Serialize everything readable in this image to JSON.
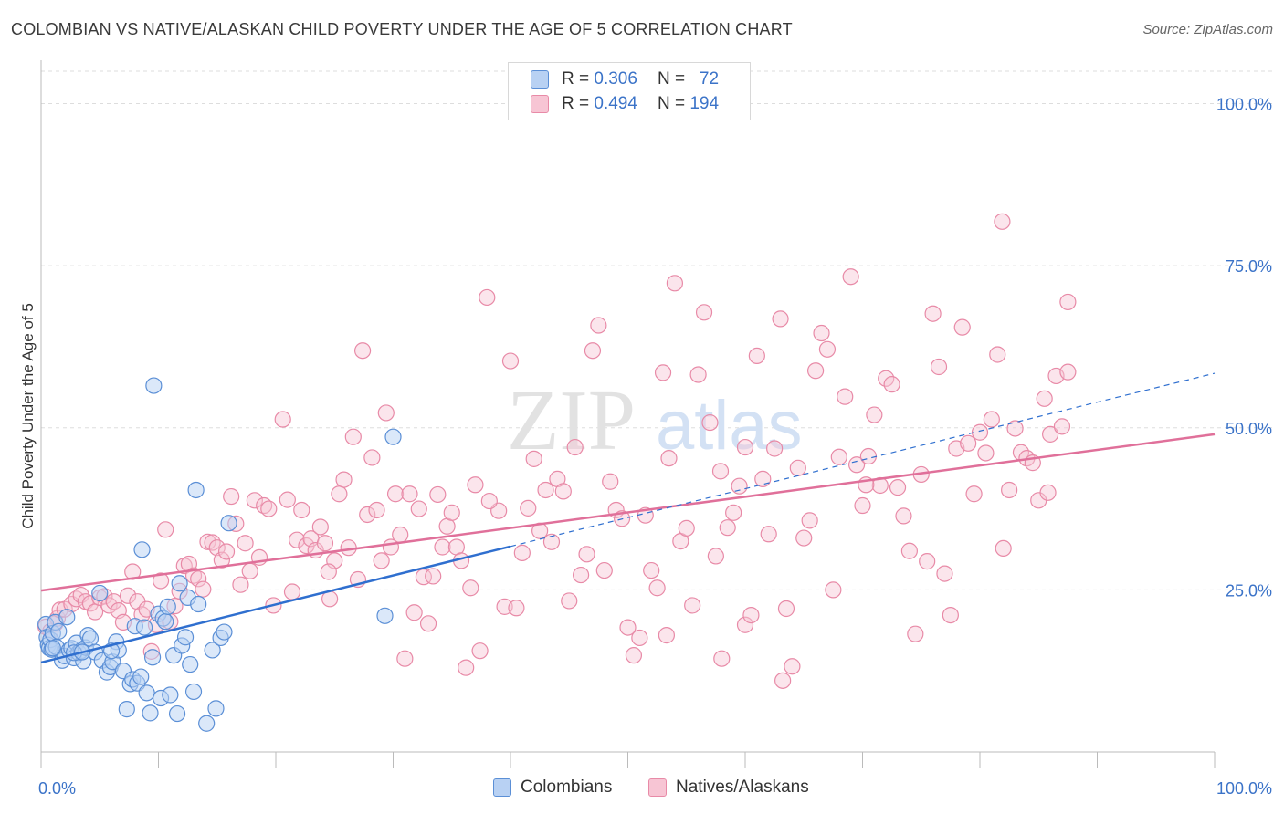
{
  "title": "COLOMBIAN VS NATIVE/ALASKAN CHILD POVERTY UNDER THE AGE OF 5 CORRELATION CHART",
  "source": "Source: ZipAtlas.com",
  "watermark": {
    "zip": "ZIP",
    "atlas": "atlas"
  },
  "legend": {
    "rows": [
      {
        "r_label": "R =",
        "r_value": "0.306",
        "n_label": "N =",
        "n_value": "72"
      },
      {
        "r_label": "R =",
        "r_value": "0.494",
        "n_label": "N =",
        "n_value": "194"
      }
    ],
    "bottom": [
      "Colombians",
      "Natives/Alaskans"
    ]
  },
  "colors": {
    "colombians_fill": "#b8d1f3",
    "colombians_stroke": "#5b8fd6",
    "colombians_line": "#2f6fcf",
    "natives_fill": "#f7c5d4",
    "natives_stroke": "#e88aa7",
    "natives_line": "#e0709a",
    "tick_text": "#3b73c8",
    "grid": "#dddddd"
  },
  "chart_data": {
    "type": "scatter",
    "title": "COLOMBIAN VS NATIVE/ALASKAN CHILD POVERTY UNDER THE AGE OF 5 CORRELATION CHART",
    "xlabel": "",
    "ylabel": "Child Poverty Under the Age of 5",
    "xlim": [
      0,
      100
    ],
    "ylim": [
      0,
      105
    ],
    "x_tick_labels": [
      "0.0%",
      "100.0%"
    ],
    "y_tick_labels": [
      "25.0%",
      "50.0%",
      "75.0%",
      "100.0%"
    ],
    "y_ticks": [
      25,
      50,
      75,
      100
    ],
    "grid": true,
    "series": [
      {
        "name": "Colombians",
        "R": 0.306,
        "N": 72,
        "trend": {
          "x0": 0,
          "y0": 13.8,
          "x1": 40,
          "y1": 31.7,
          "dashed_to_x": 100,
          "dashed_to_y": 58.4
        },
        "points": [
          [
            0.4,
            19.7
          ],
          [
            0.5,
            17.7
          ],
          [
            0.6,
            16.5
          ],
          [
            0.7,
            16.0
          ],
          [
            0.8,
            17.3
          ],
          [
            0.9,
            15.8
          ],
          [
            1.0,
            18.3
          ],
          [
            1.2,
            20.0
          ],
          [
            1.3,
            16.2
          ],
          [
            1.5,
            18.6
          ],
          [
            1.8,
            14.1
          ],
          [
            2.0,
            14.8
          ],
          [
            2.2,
            20.8
          ],
          [
            2.4,
            15.7
          ],
          [
            2.6,
            16.0
          ],
          [
            2.8,
            14.5
          ],
          [
            3.0,
            16.8
          ],
          [
            3.2,
            15.3
          ],
          [
            3.4,
            15.6
          ],
          [
            3.6,
            14.0
          ],
          [
            3.8,
            16.1
          ],
          [
            4.0,
            18.0
          ],
          [
            4.2,
            17.5
          ],
          [
            4.6,
            15.4
          ],
          [
            5.0,
            24.5
          ],
          [
            5.2,
            14.1
          ],
          [
            5.6,
            12.3
          ],
          [
            5.9,
            13.1
          ],
          [
            6.1,
            13.9
          ],
          [
            6.4,
            17.0
          ],
          [
            6.6,
            15.7
          ],
          [
            7.0,
            12.5
          ],
          [
            7.3,
            6.6
          ],
          [
            7.6,
            10.5
          ],
          [
            7.8,
            11.2
          ],
          [
            8.0,
            19.4
          ],
          [
            8.2,
            10.6
          ],
          [
            8.5,
            11.6
          ],
          [
            8.6,
            31.2
          ],
          [
            8.8,
            19.2
          ],
          [
            9.0,
            9.1
          ],
          [
            9.3,
            6.0
          ],
          [
            9.5,
            14.6
          ],
          [
            9.6,
            56.5
          ],
          [
            10.0,
            21.3
          ],
          [
            10.2,
            8.3
          ],
          [
            10.4,
            20.6
          ],
          [
            10.6,
            20.1
          ],
          [
            10.8,
            22.4
          ],
          [
            11.0,
            8.8
          ],
          [
            11.3,
            14.9
          ],
          [
            11.6,
            5.9
          ],
          [
            12.0,
            16.4
          ],
          [
            12.3,
            17.7
          ],
          [
            12.5,
            23.8
          ],
          [
            12.7,
            13.5
          ],
          [
            13.0,
            9.3
          ],
          [
            13.2,
            40.4
          ],
          [
            13.4,
            22.8
          ],
          [
            14.1,
            4.4
          ],
          [
            14.6,
            15.7
          ],
          [
            14.9,
            6.7
          ],
          [
            15.3,
            17.6
          ],
          [
            15.6,
            18.5
          ],
          [
            16.0,
            35.3
          ],
          [
            30.0,
            48.6
          ],
          [
            29.3,
            21.0
          ],
          [
            11.8,
            26.0
          ],
          [
            2.8,
            15.3
          ],
          [
            6.0,
            15.6
          ],
          [
            1.0,
            16.0
          ],
          [
            3.5,
            15.4
          ]
        ]
      },
      {
        "name": "Natives/Alaskans",
        "R": 0.494,
        "N": 194,
        "trend": {
          "x0": 0,
          "y0": 24.9,
          "x1": 100,
          "y1": 49.0
        },
        "points": [
          [
            0.4,
            19.3
          ],
          [
            0.8,
            18.6
          ],
          [
            1.2,
            19.8
          ],
          [
            1.4,
            20.6
          ],
          [
            1.6,
            21.9
          ],
          [
            2.0,
            22.0
          ],
          [
            2.6,
            22.8
          ],
          [
            3.0,
            23.6
          ],
          [
            3.4,
            24.2
          ],
          [
            3.8,
            23.2
          ],
          [
            4.2,
            22.9
          ],
          [
            4.6,
            21.6
          ],
          [
            5.0,
            23.8
          ],
          [
            5.4,
            24.0
          ],
          [
            5.8,
            22.6
          ],
          [
            6.2,
            23.2
          ],
          [
            6.6,
            21.8
          ],
          [
            7.0,
            20.0
          ],
          [
            7.4,
            24.1
          ],
          [
            7.8,
            27.8
          ],
          [
            8.2,
            23.2
          ],
          [
            8.6,
            21.2
          ],
          [
            9.0,
            22.0
          ],
          [
            9.4,
            15.5
          ],
          [
            9.8,
            19.6
          ],
          [
            10.2,
            26.4
          ],
          [
            10.6,
            34.3
          ],
          [
            11.0,
            20.1
          ],
          [
            11.4,
            22.5
          ],
          [
            11.8,
            24.8
          ],
          [
            12.2,
            28.7
          ],
          [
            12.6,
            29.0
          ],
          [
            13.0,
            27.2
          ],
          [
            13.4,
            26.7
          ],
          [
            13.8,
            25.1
          ],
          [
            14.2,
            32.4
          ],
          [
            14.6,
            32.3
          ],
          [
            15.0,
            31.5
          ],
          [
            15.4,
            29.6
          ],
          [
            15.8,
            30.9
          ],
          [
            16.2,
            39.4
          ],
          [
            16.6,
            35.2
          ],
          [
            17.0,
            25.8
          ],
          [
            17.4,
            32.2
          ],
          [
            17.8,
            27.9
          ],
          [
            18.2,
            38.8
          ],
          [
            18.6,
            30.0
          ],
          [
            19.0,
            38.0
          ],
          [
            19.4,
            37.5
          ],
          [
            19.8,
            22.6
          ],
          [
            20.6,
            51.3
          ],
          [
            21.0,
            38.9
          ],
          [
            21.4,
            24.7
          ],
          [
            21.8,
            32.7
          ],
          [
            22.2,
            37.3
          ],
          [
            22.6,
            31.8
          ],
          [
            23.0,
            32.9
          ],
          [
            23.4,
            31.1
          ],
          [
            23.8,
            34.7
          ],
          [
            24.2,
            32.2
          ],
          [
            24.6,
            23.6
          ],
          [
            25.0,
            29.5
          ],
          [
            25.4,
            39.8
          ],
          [
            25.8,
            42.0
          ],
          [
            26.2,
            31.5
          ],
          [
            26.6,
            48.6
          ],
          [
            27.0,
            26.6
          ],
          [
            27.4,
            61.9
          ],
          [
            27.8,
            36.6
          ],
          [
            28.2,
            45.4
          ],
          [
            28.6,
            37.3
          ],
          [
            29.0,
            29.5
          ],
          [
            29.4,
            52.3
          ],
          [
            29.8,
            31.6
          ],
          [
            30.2,
            39.8
          ],
          [
            30.6,
            33.5
          ],
          [
            31.0,
            14.4
          ],
          [
            31.4,
            39.8
          ],
          [
            31.8,
            21.5
          ],
          [
            32.2,
            37.5
          ],
          [
            32.6,
            27.0
          ],
          [
            33.0,
            19.8
          ],
          [
            33.4,
            27.1
          ],
          [
            33.8,
            39.7
          ],
          [
            34.2,
            31.6
          ],
          [
            34.6,
            34.8
          ],
          [
            35.0,
            36.9
          ],
          [
            35.4,
            31.6
          ],
          [
            35.8,
            29.5
          ],
          [
            36.2,
            13.0
          ],
          [
            36.6,
            25.3
          ],
          [
            37.0,
            41.2
          ],
          [
            37.4,
            15.6
          ],
          [
            38.0,
            70.1
          ],
          [
            39.0,
            37.2
          ],
          [
            39.5,
            22.4
          ],
          [
            40.0,
            60.3
          ],
          [
            40.5,
            22.2
          ],
          [
            41.0,
            30.7
          ],
          [
            41.5,
            37.6
          ],
          [
            42.0,
            45.2
          ],
          [
            42.5,
            34.1
          ],
          [
            43.0,
            40.4
          ],
          [
            43.5,
            32.4
          ],
          [
            44.0,
            42.1
          ],
          [
            44.5,
            40.2
          ],
          [
            45.0,
            23.3
          ],
          [
            45.5,
            47.0
          ],
          [
            46.0,
            27.3
          ],
          [
            46.5,
            30.5
          ],
          [
            47.0,
            61.9
          ],
          [
            47.5,
            65.8
          ],
          [
            48.0,
            28.0
          ],
          [
            48.5,
            41.7
          ],
          [
            49.0,
            37.3
          ],
          [
            49.5,
            36.0
          ],
          [
            50.0,
            19.2
          ],
          [
            50.5,
            14.9
          ],
          [
            51.0,
            17.6
          ],
          [
            51.5,
            36.5
          ],
          [
            52.0,
            28.0
          ],
          [
            52.5,
            25.3
          ],
          [
            53.0,
            58.5
          ],
          [
            53.5,
            45.3
          ],
          [
            54.0,
            72.3
          ],
          [
            54.5,
            32.5
          ],
          [
            55.0,
            34.5
          ],
          [
            55.5,
            22.6
          ],
          [
            56.0,
            58.2
          ],
          [
            56.5,
            67.8
          ],
          [
            57.0,
            50.8
          ],
          [
            57.5,
            30.2
          ],
          [
            58.0,
            14.4
          ],
          [
            58.5,
            34.6
          ],
          [
            59.0,
            36.9
          ],
          [
            59.5,
            41.0
          ],
          [
            60.0,
            19.6
          ],
          [
            60.5,
            21.1
          ],
          [
            61.0,
            61.1
          ],
          [
            61.5,
            42.1
          ],
          [
            62.0,
            33.6
          ],
          [
            62.5,
            46.8
          ],
          [
            63.0,
            66.8
          ],
          [
            63.5,
            22.1
          ],
          [
            64.0,
            13.2
          ],
          [
            64.5,
            43.8
          ],
          [
            65.0,
            33.0
          ],
          [
            65.5,
            35.7
          ],
          [
            66.0,
            58.8
          ],
          [
            66.5,
            64.6
          ],
          [
            67.0,
            62.1
          ],
          [
            67.5,
            25.0
          ],
          [
            68.0,
            45.5
          ],
          [
            68.5,
            54.8
          ],
          [
            69.0,
            73.3
          ],
          [
            69.5,
            44.3
          ],
          [
            70.0,
            38.0
          ],
          [
            70.5,
            45.6
          ],
          [
            71.0,
            52.0
          ],
          [
            71.5,
            41.1
          ],
          [
            72.0,
            57.6
          ],
          [
            72.5,
            56.7
          ],
          [
            73.0,
            40.8
          ],
          [
            73.5,
            36.4
          ],
          [
            74.0,
            31.0
          ],
          [
            74.5,
            18.2
          ],
          [
            75.0,
            42.8
          ],
          [
            75.5,
            29.4
          ],
          [
            76.0,
            67.6
          ],
          [
            76.5,
            59.4
          ],
          [
            77.0,
            27.5
          ],
          [
            77.5,
            21.1
          ],
          [
            78.0,
            46.8
          ],
          [
            78.5,
            65.5
          ],
          [
            79.0,
            47.6
          ],
          [
            79.5,
            39.8
          ],
          [
            80.0,
            49.3
          ],
          [
            80.5,
            46.1
          ],
          [
            81.0,
            51.3
          ],
          [
            81.5,
            61.3
          ],
          [
            82.0,
            31.4
          ],
          [
            82.5,
            40.4
          ],
          [
            83.0,
            49.9
          ],
          [
            83.5,
            46.2
          ],
          [
            84.0,
            45.3
          ],
          [
            84.5,
            44.6
          ],
          [
            85.0,
            38.8
          ],
          [
            85.5,
            54.5
          ],
          [
            86.0,
            49.0
          ],
          [
            86.5,
            58.0
          ],
          [
            87.0,
            50.2
          ],
          [
            87.5,
            58.6
          ],
          [
            63.2,
            11.0
          ],
          [
            81.9,
            81.8
          ],
          [
            87.5,
            69.4
          ],
          [
            85.8,
            40.0
          ],
          [
            60.0,
            47.0
          ],
          [
            24.5,
            27.8
          ],
          [
            70.3,
            41.2
          ],
          [
            57.9,
            43.3
          ],
          [
            53.3,
            18.0
          ],
          [
            38.2,
            38.7
          ]
        ]
      }
    ]
  },
  "axis": {
    "ylabel": "Child Poverty Under the Age of 5",
    "x_left": "0.0%",
    "x_right": "100.0%",
    "y_ticks": [
      "25.0%",
      "50.0%",
      "75.0%",
      "100.0%"
    ]
  }
}
